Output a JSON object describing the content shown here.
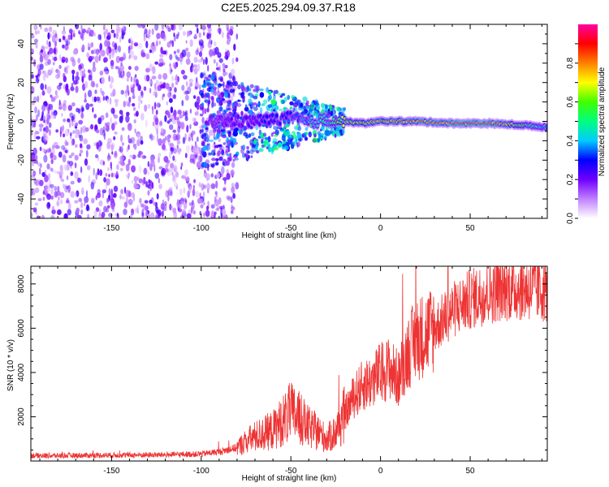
{
  "title": "C2E5.2025.294.09.37.R18",
  "chart_data": [
    {
      "type": "heatmap",
      "xlabel": "Height of straight line (km)",
      "ylabel": "Frequency (Hz)",
      "xlim": [
        -195,
        93
      ],
      "ylim": [
        -50,
        50
      ],
      "xticks": [
        -150,
        -100,
        -50,
        0,
        50
      ],
      "yticks": [
        -40,
        -20,
        0,
        20,
        40
      ],
      "colorbar": {
        "label": "Normalized spectral amplitude",
        "range": [
          0,
          1
        ],
        "ticks": [
          0.0,
          0.2,
          0.4,
          0.6,
          0.8
        ],
        "tick_labels": [
          "0.0",
          "0.2",
          "0.4",
          "0.6",
          "0.8"
        ],
        "colors": [
          "#ffffff",
          "#c080ff",
          "#7000ff",
          "#0000ff",
          "#00ccff",
          "#00ff80",
          "#40ff00",
          "#ffff00",
          "#ff8000",
          "#ff0000",
          "#ff00a0"
        ]
      },
      "centerline": [
        {
          "x": -95,
          "y": 0,
          "amp": 0.18
        },
        {
          "x": -75,
          "y": 0,
          "amp": 0.22
        },
        {
          "x": -60,
          "y": 1,
          "amp": 0.3
        },
        {
          "x": -50,
          "y": 2,
          "amp": 0.35
        },
        {
          "x": -40,
          "y": -1,
          "amp": 0.42
        },
        {
          "x": -30,
          "y": 1,
          "amp": 0.5
        },
        {
          "x": -20,
          "y": 0,
          "amp": 0.62
        },
        {
          "x": -10,
          "y": -1,
          "amp": 0.7
        },
        {
          "x": 0,
          "y": 0,
          "amp": 0.75
        },
        {
          "x": 20,
          "y": 0,
          "amp": 0.8
        },
        {
          "x": 40,
          "y": -1,
          "amp": 0.88
        },
        {
          "x": 60,
          "y": -1,
          "amp": 0.95
        },
        {
          "x": 80,
          "y": -2,
          "amp": 0.55
        },
        {
          "x": 93,
          "y": -3,
          "amp": 0.4
        }
      ]
    },
    {
      "type": "line",
      "xlabel": "Height of straight line (km)",
      "ylabel": "SNR (10 * v/v)",
      "xlim": [
        -195,
        93
      ],
      "ylim": [
        0,
        8800
      ],
      "xticks": [
        -150,
        -100,
        -50,
        0,
        50
      ],
      "yticks": [
        2000,
        4000,
        6000,
        8000
      ],
      "color": "#ee3333",
      "series": [
        {
          "name": "SNR",
          "x": [
            -195,
            -180,
            -160,
            -140,
            -120,
            -100,
            -90,
            -80,
            -75,
            -70,
            -60,
            -55,
            -50,
            -45,
            -40,
            -35,
            -30,
            -25,
            -20,
            -15,
            -10,
            -5,
            0,
            5,
            10,
            15,
            20,
            30,
            40,
            50,
            60,
            70,
            80,
            93
          ],
          "y": [
            250,
            240,
            260,
            270,
            280,
            320,
            420,
            600,
            900,
            1100,
            1400,
            1800,
            2200,
            1900,
            1500,
            1300,
            1000,
            1300,
            2100,
            2900,
            3400,
            3600,
            4000,
            4200,
            3700,
            4900,
            5500,
            6000,
            6800,
            7300,
            7600,
            7800,
            7800,
            7700
          ]
        }
      ]
    }
  ]
}
